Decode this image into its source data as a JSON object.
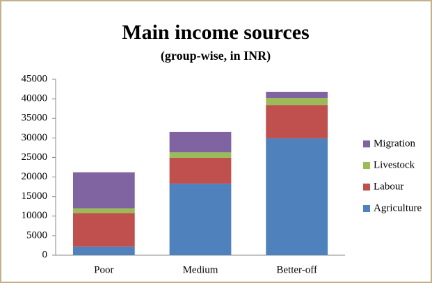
{
  "chart_data": {
    "type": "stacked_bar",
    "title": "Main income sources",
    "subtitle": "(group-wise, in INR)",
    "categories": [
      "Poor",
      "Medium",
      "Better-off"
    ],
    "series": [
      {
        "name": "Agriculture",
        "color": "#4f81bd",
        "values": [
          2200,
          18300,
          29900
        ]
      },
      {
        "name": "Labour",
        "color": "#c0504d",
        "values": [
          8600,
          6600,
          8500
        ]
      },
      {
        "name": "Livestock",
        "color": "#9bbb59",
        "values": [
          1200,
          1400,
          1800
        ]
      },
      {
        "name": "Migration",
        "color": "#8064a2",
        "values": [
          9200,
          5200,
          1600
        ]
      }
    ],
    "ylim": [
      0,
      45000
    ],
    "yticks": [
      0,
      5000,
      10000,
      15000,
      20000,
      25000,
      30000,
      35000,
      40000,
      45000
    ],
    "grid": false,
    "legend": "right"
  }
}
